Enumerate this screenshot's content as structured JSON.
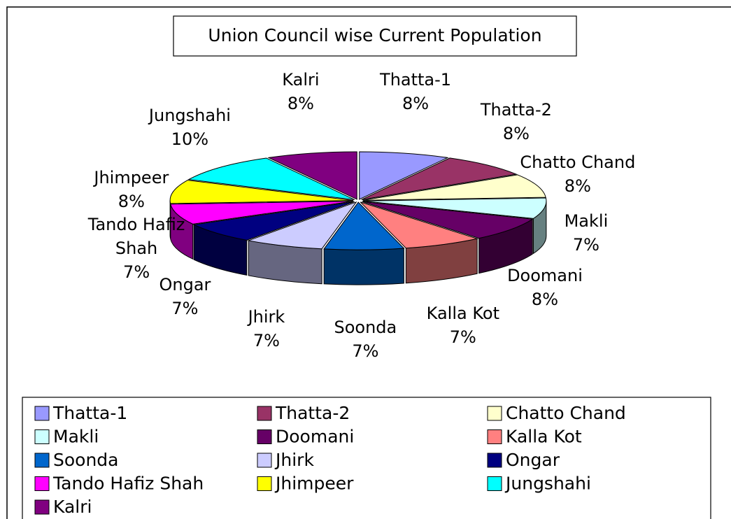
{
  "chart_data": {
    "type": "pie3d",
    "title": "Union Council wise Current Population",
    "categories": [
      "Thatta-1",
      "Thatta-2",
      "Chatto Chand",
      "Makli",
      "Doomani",
      "Kalla Kot",
      "Soonda",
      "Jhirk",
      "Ongar",
      "Tando Hafiz Shah",
      "Jhimpeer",
      "Jungshahi",
      "Kalri"
    ],
    "values": [
      8,
      8,
      8,
      7,
      8,
      7,
      7,
      7,
      7,
      7,
      8,
      10,
      8
    ],
    "value_labels": [
      "8%",
      "8%",
      "8%",
      "7%",
      "8%",
      "7%",
      "7%",
      "7%",
      "7%",
      "7%",
      "8%",
      "10%",
      "8%"
    ],
    "colors": [
      "#9999ff",
      "#993366",
      "#ffffcc",
      "#ccffff",
      "#660066",
      "#ff8080",
      "#0066cc",
      "#ccccff",
      "#000080",
      "#ff00ff",
      "#ffff00",
      "#00ffff",
      "#800080"
    ],
    "legend": "bottom"
  }
}
